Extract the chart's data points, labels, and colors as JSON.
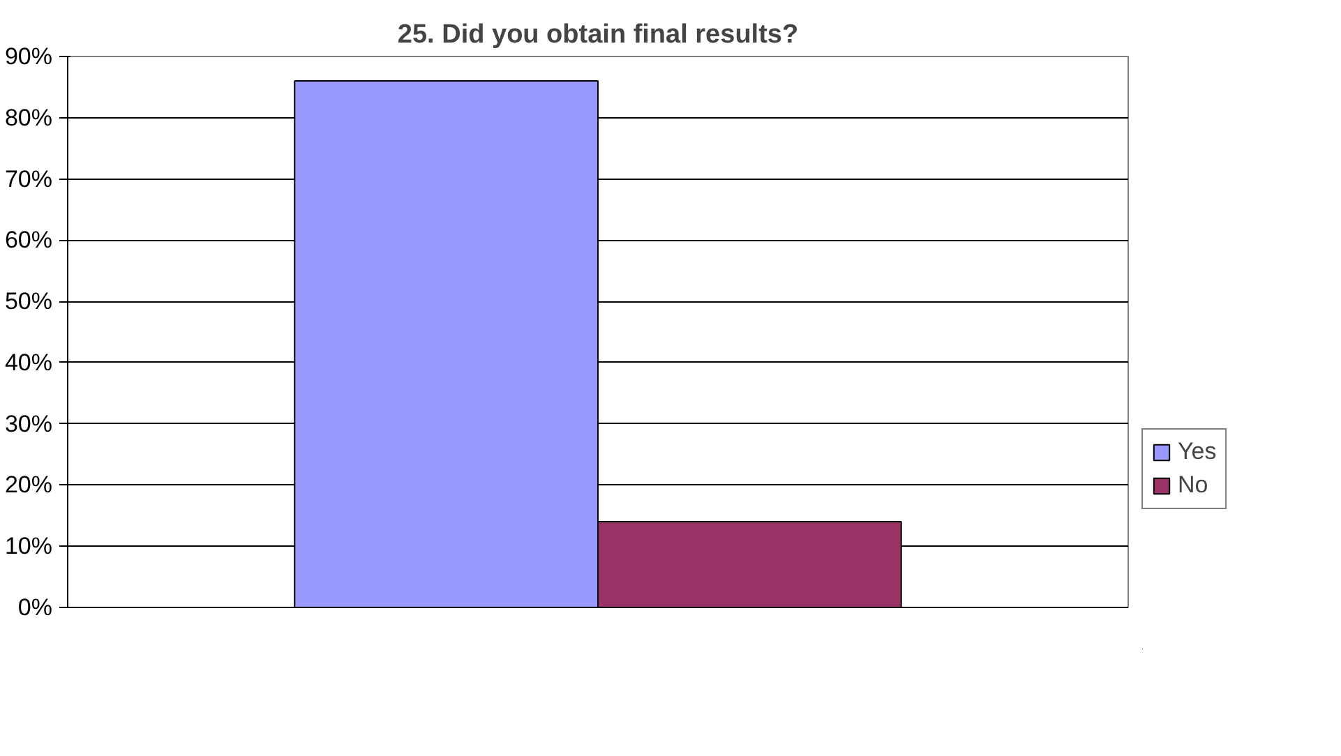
{
  "chart_data": {
    "type": "bar",
    "title": "25. Did you obtain final results?",
    "categories": [
      null
    ],
    "series": [
      {
        "name": "Yes",
        "color": "#9999ff",
        "values": [
          86
        ]
      },
      {
        "name": "No",
        "color": "#993366",
        "values": [
          14
        ]
      }
    ],
    "ylim": [
      0,
      90
    ],
    "yticks": [
      {
        "value": 0,
        "label": "0%"
      },
      {
        "value": 10,
        "label": "10%"
      },
      {
        "value": 20,
        "label": "20%"
      },
      {
        "value": 30,
        "label": "30%"
      },
      {
        "value": 40,
        "label": "40%"
      },
      {
        "value": 50,
        "label": "50%"
      },
      {
        "value": 60,
        "label": "60%"
      },
      {
        "value": 70,
        "label": "70%"
      },
      {
        "value": 80,
        "label": "80%"
      },
      {
        "value": 90,
        "label": "90%"
      }
    ],
    "grid": "y",
    "legend": "right"
  }
}
